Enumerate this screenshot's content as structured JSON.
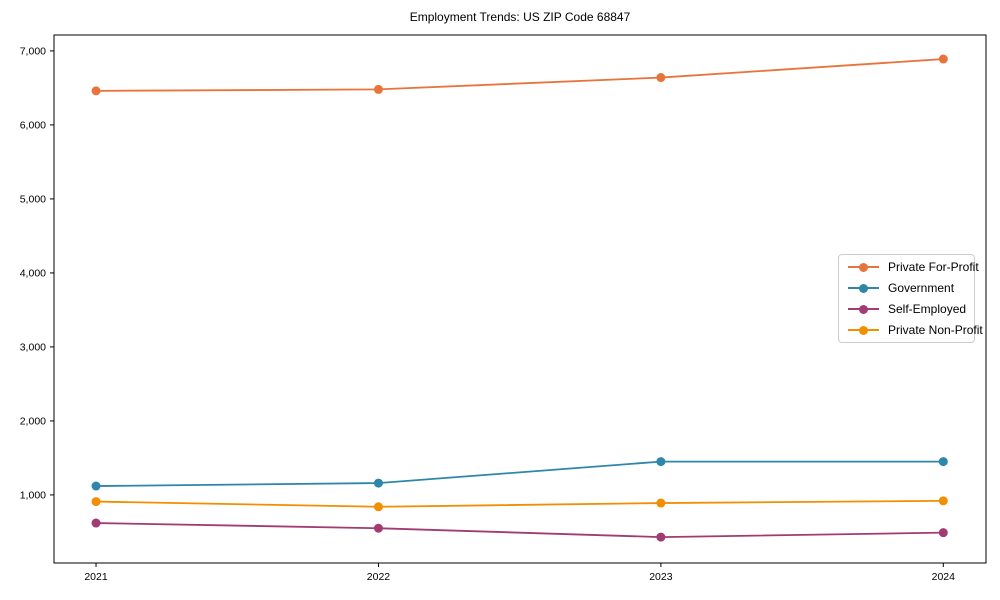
{
  "chart_data": {
    "type": "line",
    "title": "Employment Trends: US ZIP Code 68847",
    "x": [
      2021,
      2022,
      2023,
      2024
    ],
    "xtick_labels": [
      "2021",
      "2022",
      "2023",
      "2024"
    ],
    "yticks": [
      1000,
      2000,
      3000,
      4000,
      5000,
      6000,
      7000
    ],
    "ytick_labels": [
      "1,000",
      "2,000",
      "3,000",
      "4,000",
      "5,000",
      "6,000",
      "7,000"
    ],
    "ylim": [
      80,
      7215
    ],
    "xlabel": "",
    "ylabel": "",
    "grid": false,
    "marker": "circle",
    "legend_position": "center right",
    "series": [
      {
        "name": "Private For-Profit",
        "color": "#E8743B",
        "values": [
          6460,
          6480,
          6640,
          6890
        ]
      },
      {
        "name": "Government",
        "color": "#2E86AB",
        "values": [
          1120,
          1160,
          1450,
          1450
        ]
      },
      {
        "name": "Self-Employed",
        "color": "#A23B72",
        "values": [
          620,
          550,
          430,
          490
        ]
      },
      {
        "name": "Private Non-Profit",
        "color": "#F18F01",
        "values": [
          910,
          840,
          890,
          920
        ]
      }
    ]
  }
}
